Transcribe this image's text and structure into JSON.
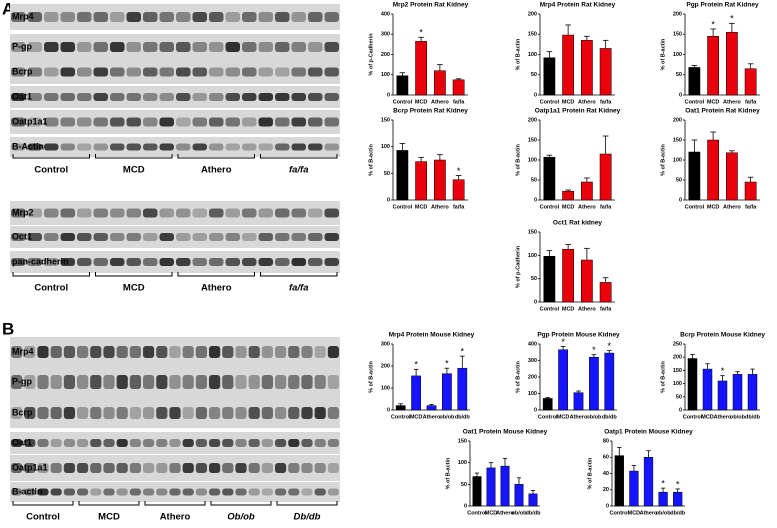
{
  "panels": [
    "A",
    "B"
  ],
  "blots": [
    {
      "rows": [
        "Mrp4",
        "P-gp",
        "Bcrp",
        "Oat1",
        "Oatp1a1",
        "B-Actin"
      ],
      "groups": [
        "Control",
        "MCD",
        "Athero",
        "fa/fa"
      ]
    },
    {
      "rows": [
        "Mrp2",
        "Oct1",
        "pan-cadherin"
      ],
      "groups": [
        "Control",
        "MCD",
        "Athero",
        "fa/fa"
      ]
    },
    {
      "rows": [
        "Mrp4",
        "P-gp",
        "Bcrp",
        "Oat1",
        "Oatp1a1",
        "B-actin"
      ],
      "groups": [
        "Control",
        "MCD",
        "Athero",
        "Ob/ob",
        "Db/db"
      ]
    }
  ],
  "chart_data": [
    {
      "type": "bar",
      "title": "Mrp2 Protein Rat Kidney",
      "y_label": "% of p-Cadherin",
      "categories": [
        "Control",
        "MCD",
        "Athero",
        "fa/fa"
      ],
      "values": [
        95,
        265,
        120,
        75
      ],
      "errors": [
        15,
        20,
        30,
        5
      ],
      "significance": [
        null,
        "*",
        null,
        null
      ],
      "colors": [
        "#000000",
        "#e8000b",
        "#e8000b",
        "#e8000b"
      ],
      "ylim": [
        0,
        400
      ],
      "yticks": [
        0,
        100,
        200,
        300,
        400
      ]
    },
    {
      "type": "bar",
      "title": "Mrp4 Protein Rat Kidney",
      "y_label": "% of B-actin",
      "categories": [
        "Control",
        "MCD",
        "Athero",
        "fa/fa"
      ],
      "values": [
        92,
        148,
        135,
        115
      ],
      "errors": [
        15,
        25,
        10,
        20
      ],
      "significance": [
        null,
        null,
        null,
        null
      ],
      "colors": [
        "#000000",
        "#e8000b",
        "#e8000b",
        "#e8000b"
      ],
      "ylim": [
        0,
        200
      ],
      "yticks": [
        0,
        50,
        100,
        150,
        200
      ]
    },
    {
      "type": "bar",
      "title": "Pgp Protein Rat Kidney",
      "y_label": "% of B-actin",
      "categories": [
        "Control",
        "MCD",
        "Athero",
        "fa/fa"
      ],
      "values": [
        68,
        145,
        155,
        65
      ],
      "errors": [
        5,
        18,
        22,
        12
      ],
      "significance": [
        null,
        "*",
        "*",
        null
      ],
      "colors": [
        "#000000",
        "#e8000b",
        "#e8000b",
        "#e8000b"
      ],
      "ylim": [
        0,
        200
      ],
      "yticks": [
        0,
        50,
        100,
        150,
        200
      ]
    },
    {
      "type": "bar",
      "title": "Bcrp Protein Rat Kidney",
      "y_label": "% of B-actin",
      "categories": [
        "Control",
        "MCD",
        "Athero",
        "fa/fa"
      ],
      "values": [
        93,
        72,
        75,
        38
      ],
      "errors": [
        13,
        8,
        10,
        8
      ],
      "significance": [
        null,
        null,
        null,
        "*"
      ],
      "colors": [
        "#000000",
        "#e8000b",
        "#e8000b",
        "#e8000b"
      ],
      "ylim": [
        0,
        150
      ],
      "yticks": [
        0,
        50,
        100,
        150
      ]
    },
    {
      "type": "bar",
      "title": "Oatp1a1 Protein Rat Kidney",
      "y_label": "% of B-actin",
      "categories": [
        "Control",
        "MCD",
        "Athero",
        "fa/fa"
      ],
      "values": [
        107,
        22,
        45,
        115
      ],
      "errors": [
        5,
        3,
        10,
        45
      ],
      "significance": [
        null,
        null,
        null,
        null
      ],
      "colors": [
        "#000000",
        "#e8000b",
        "#e8000b",
        "#e8000b"
      ],
      "ylim": [
        0,
        200
      ],
      "yticks": [
        0,
        50,
        100,
        150,
        200
      ]
    },
    {
      "type": "bar",
      "title": "Oat1 Protein Rat Kidney",
      "y_label": "% of B-actin",
      "categories": [
        "Control",
        "MCD",
        "Athero",
        "fa/fa"
      ],
      "values": [
        120,
        150,
        118,
        45
      ],
      "errors": [
        30,
        20,
        5,
        12
      ],
      "significance": [
        null,
        null,
        null,
        null
      ],
      "colors": [
        "#000000",
        "#e8000b",
        "#e8000b",
        "#e8000b"
      ],
      "ylim": [
        0,
        200
      ],
      "yticks": [
        0,
        50,
        100,
        150,
        200
      ]
    },
    {
      "type": "bar",
      "title": "Oct1 Rat kidney",
      "y_label": "% of p-Cadherin",
      "categories": [
        "Control",
        "MCD",
        "Athero",
        "fa/fa"
      ],
      "values": [
        98,
        113,
        90,
        42
      ],
      "errors": [
        12,
        10,
        25,
        10
      ],
      "significance": [
        null,
        null,
        null,
        null
      ],
      "colors": [
        "#000000",
        "#e8000b",
        "#e8000b",
        "#e8000b"
      ],
      "ylim": [
        0,
        150
      ],
      "yticks": [
        0,
        50,
        100,
        150
      ]
    },
    {
      "type": "bar",
      "title": "Mrp4 Protein Mouse Kidney",
      "y_label": "% of B-actin",
      "categories": [
        "Control",
        "MCD",
        "Athero",
        "ob/ob",
        "db/db"
      ],
      "values": [
        20,
        155,
        20,
        165,
        190
      ],
      "errors": [
        8,
        30,
        5,
        25,
        55
      ],
      "significance": [
        null,
        "*",
        null,
        "*",
        "*"
      ],
      "colors": [
        "#000000",
        "#1414ff",
        "#1414ff",
        "#1414ff",
        "#1414ff"
      ],
      "ylim": [
        0,
        300
      ],
      "yticks": [
        0,
        100,
        200,
        300
      ]
    },
    {
      "type": "bar",
      "title": "Pgp Protein Mouse Kidney",
      "y_label": "% of B-actin",
      "categories": [
        "Control",
        "MCD",
        "Athero",
        "ob/ob",
        "db/db"
      ],
      "values": [
        70,
        365,
        105,
        320,
        345
      ],
      "errors": [
        5,
        20,
        10,
        15,
        15
      ],
      "significance": [
        null,
        "*",
        null,
        "*",
        "*"
      ],
      "colors": [
        "#000000",
        "#1414ff",
        "#1414ff",
        "#1414ff",
        "#1414ff"
      ],
      "ylim": [
        0,
        400
      ],
      "yticks": [
        0,
        100,
        200,
        300,
        400
      ]
    },
    {
      "type": "bar",
      "title": "Bcrp Protein Mouse Kidney",
      "y_label": "% of B-actin",
      "categories": [
        "Control",
        "MCD",
        "Athero",
        "ob/ob",
        "db/db"
      ],
      "values": [
        195,
        155,
        110,
        135,
        135
      ],
      "errors": [
        15,
        20,
        20,
        10,
        20
      ],
      "significance": [
        null,
        null,
        "*",
        null,
        null
      ],
      "colors": [
        "#000000",
        "#1414ff",
        "#1414ff",
        "#1414ff",
        "#1414ff"
      ],
      "ylim": [
        0,
        250
      ],
      "yticks": [
        0,
        50,
        100,
        150,
        200,
        250
      ]
    },
    {
      "type": "bar",
      "title": "Oat1 Protein Mouse Kidney",
      "y_label": "% of B-actin",
      "categories": [
        "Control",
        "MCD",
        "Athero",
        "ob/ob",
        "db/db"
      ],
      "values": [
        68,
        88,
        92,
        50,
        28
      ],
      "errors": [
        8,
        12,
        18,
        15,
        8
      ],
      "significance": [
        null,
        null,
        null,
        null,
        null
      ],
      "colors": [
        "#000000",
        "#1414ff",
        "#1414ff",
        "#1414ff",
        "#1414ff"
      ],
      "ylim": [
        0,
        150
      ],
      "yticks": [
        0,
        50,
        100,
        150
      ]
    },
    {
      "type": "bar",
      "title": "Oatp1 Protein Mouse Kidney",
      "y_label": "% of B-actin",
      "categories": [
        "Control",
        "MCD",
        "Athero",
        "ob/ob",
        "db/db"
      ],
      "values": [
        62,
        43,
        60,
        17,
        17
      ],
      "errors": [
        10,
        7,
        8,
        5,
        4
      ],
      "significance": [
        null,
        null,
        null,
        "*",
        "*"
      ],
      "colors": [
        "#000000",
        "#1414ff",
        "#1414ff",
        "#1414ff",
        "#1414ff"
      ],
      "ylim": [
        0,
        80
      ],
      "yticks": [
        0,
        20,
        40,
        60,
        80
      ]
    }
  ]
}
